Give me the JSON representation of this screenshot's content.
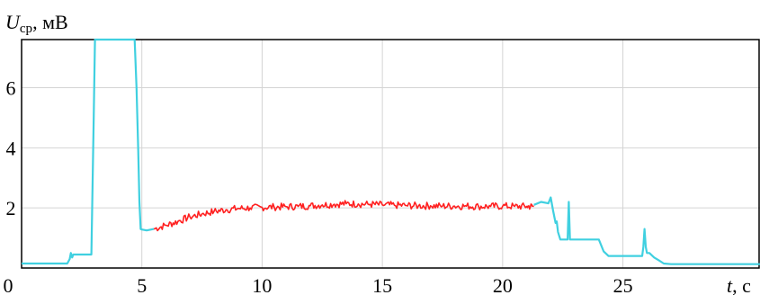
{
  "chart_data": {
    "type": "line",
    "title": "",
    "ylabel": {
      "symbol": "U",
      "subscript": "ср",
      "unit": ", мВ"
    },
    "xlabel": {
      "symbol": "t",
      "unit": ", с"
    },
    "xlim": [
      0,
      30.7
    ],
    "ylim": [
      0,
      7.6
    ],
    "xticks": [
      0,
      5,
      10,
      15,
      20,
      25
    ],
    "yticks": [
      2,
      4,
      6
    ],
    "grid": true,
    "colors": {
      "baseline": "#40d0e0",
      "highlight": "#ff2020",
      "grid": "#d4d4d4",
      "frame": "#000000"
    },
    "series": [
      {
        "segment": "baseline-start",
        "color": "#40d0e0",
        "x": [
          0,
          1.9,
          2.0,
          2.05,
          2.1,
          2.15,
          2.2,
          2.7,
          2.9,
          3.0,
          3.05,
          3.1,
          4.7,
          4.78,
          4.85,
          4.9,
          4.95,
          5.0,
          5.2,
          5.5
        ],
        "y": [
          0.15,
          0.15,
          0.3,
          0.5,
          0.35,
          0.45,
          0.45,
          0.45,
          0.45,
          5.0,
          7.6,
          7.6,
          7.6,
          6.0,
          3.9,
          2.2,
          1.3,
          1.28,
          1.25,
          1.3
        ]
      },
      {
        "segment": "steady-state",
        "color": "#ff2020",
        "x": [
          5.5,
          6.0,
          6.5,
          7.0,
          7.5,
          8.0,
          8.5,
          9.0,
          9.5,
          10.0,
          10.5,
          11.0,
          11.5,
          12.0,
          12.5,
          13.0,
          13.5,
          14.0,
          14.5,
          15.0,
          15.5,
          16.0,
          16.5,
          17.0,
          17.5,
          18.0,
          18.5,
          19.0,
          19.5,
          20.0,
          20.5,
          21.0,
          21.3
        ],
        "y": [
          1.3,
          1.42,
          1.55,
          1.7,
          1.8,
          1.88,
          1.94,
          1.98,
          2.0,
          2.02,
          2.03,
          2.04,
          2.05,
          2.07,
          2.1,
          2.12,
          2.14,
          2.13,
          2.12,
          2.1,
          2.09,
          2.08,
          2.07,
          2.07,
          2.06,
          2.06,
          2.06,
          2.05,
          2.05,
          2.06,
          2.05,
          2.05,
          2.05
        ]
      },
      {
        "segment": "baseline-end",
        "color": "#40d0e0",
        "x": [
          21.3,
          21.6,
          21.9,
          22.0,
          22.1,
          22.2,
          22.25,
          22.3,
          22.4,
          22.7,
          22.75,
          22.8,
          22.85,
          23.0,
          23.5,
          24.0,
          24.1,
          24.2,
          24.4,
          24.7,
          25.0,
          25.4,
          25.8,
          25.85,
          25.9,
          25.95,
          26.0,
          26.1,
          26.3,
          26.5,
          26.7,
          27.0,
          28.0,
          29.0,
          30.0,
          30.7
        ],
        "y": [
          2.1,
          2.2,
          2.15,
          2.35,
          1.9,
          1.5,
          1.55,
          1.2,
          0.95,
          0.95,
          2.2,
          0.95,
          0.95,
          0.95,
          0.95,
          0.95,
          0.75,
          0.55,
          0.4,
          0.4,
          0.4,
          0.4,
          0.4,
          0.7,
          1.3,
          0.7,
          0.5,
          0.5,
          0.35,
          0.25,
          0.15,
          0.13,
          0.13,
          0.13,
          0.13,
          0.13
        ]
      }
    ],
    "noise_amplitude": 0.12
  }
}
